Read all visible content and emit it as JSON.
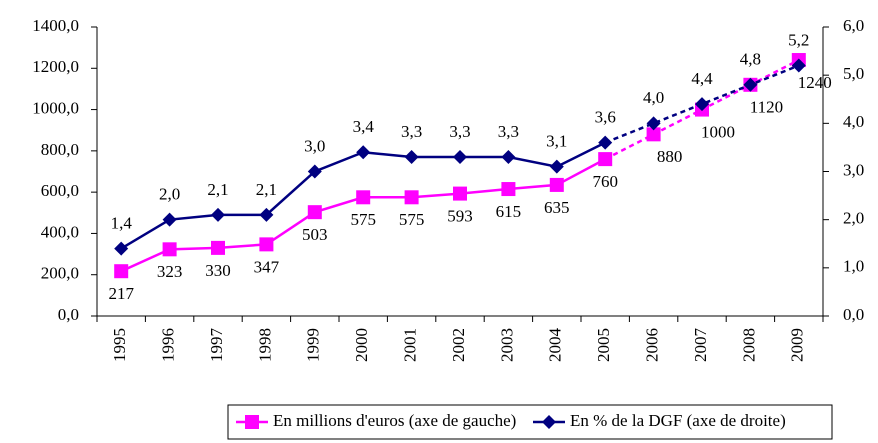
{
  "chart_data": {
    "type": "line",
    "categories": [
      "1995",
      "1996",
      "1997",
      "1998",
      "1999",
      "2000",
      "2001",
      "2002",
      "2003",
      "2004",
      "2005",
      "2006",
      "2007",
      "2008",
      "2009"
    ],
    "projection_start": "2005",
    "series": [
      {
        "name": "En millions d'euros (axe de gauche)",
        "color": "#ff00ff",
        "marker": "square",
        "axis": "y",
        "values": [
          217,
          323,
          330,
          347,
          503,
          575,
          575,
          593,
          615,
          635,
          760,
          880,
          1000,
          1120,
          1240
        ]
      },
      {
        "name": "En % de la DGF (axe de droite)",
        "color": "#000080",
        "marker": "diamond",
        "axis": "y2",
        "values": [
          1.4,
          2.0,
          2.1,
          2.1,
          3.0,
          3.4,
          3.3,
          3.3,
          3.3,
          3.1,
          3.6,
          4.0,
          4.4,
          4.8,
          5.2
        ],
        "value_labels": [
          "1,4",
          "2,0",
          "2,1",
          "2,1",
          "3,0",
          "3,4",
          "3,3",
          "3,3",
          "3,3",
          "3,1",
          "3,6",
          "4,0",
          "4,4",
          "4,8",
          "5,2"
        ]
      }
    ],
    "ylim": [
      0,
      1400
    ],
    "yticks": [
      {
        "value": 0,
        "label": "0,0"
      },
      {
        "value": 200,
        "label": "200,0"
      },
      {
        "value": 400,
        "label": "400,0"
      },
      {
        "value": 600,
        "label": "600,0"
      },
      {
        "value": 800,
        "label": "800,0"
      },
      {
        "value": 1000,
        "label": "1000,0"
      },
      {
        "value": 1200,
        "label": "1200,0"
      },
      {
        "value": 1400,
        "label": "1400,0"
      }
    ],
    "y2lim": [
      0,
      6
    ],
    "y2ticks": [
      {
        "value": 0,
        "label": "0,0"
      },
      {
        "value": 1,
        "label": "1,0"
      },
      {
        "value": 2,
        "label": "2,0"
      },
      {
        "value": 3,
        "label": "3,0"
      },
      {
        "value": 4,
        "label": "4,0"
      },
      {
        "value": 5,
        "label": "5,0"
      },
      {
        "value": 6,
        "label": "6,0"
      }
    ],
    "legend": "bottom"
  }
}
